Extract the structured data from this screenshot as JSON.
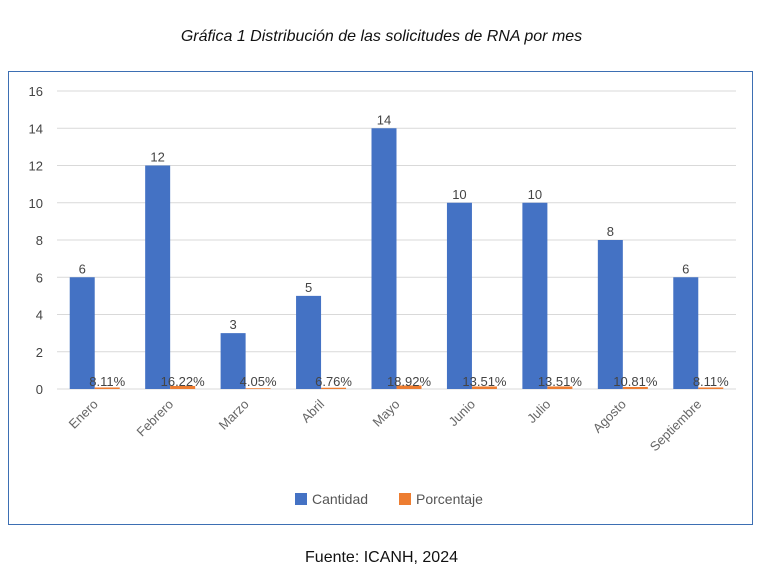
{
  "title": "Gráfica 1 Distribución de las solicitudes de RNA por mes",
  "source": "Fuente: ICANH, 2024",
  "colors": {
    "cantidad": "#4472c4",
    "porcentaje": "#ed7d31",
    "grid": "#d9d9d9",
    "border": "#3d6fb3"
  },
  "chart_data": {
    "type": "bar",
    "categories": [
      "Enero",
      "Febrero",
      "Marzo",
      "Abril",
      "Mayo",
      "Junio",
      "Julio",
      "Agosto",
      "Septiembre"
    ],
    "series": [
      {
        "name": "Cantidad",
        "values": [
          6,
          12,
          3,
          5,
          14,
          10,
          10,
          8,
          6
        ],
        "labels": [
          "6",
          "12",
          "3",
          "5",
          "14",
          "10",
          "10",
          "8",
          "6"
        ]
      },
      {
        "name": "Porcentaje",
        "values": [
          0.0811,
          0.1622,
          0.0405,
          0.0676,
          0.1892,
          0.1351,
          0.1351,
          0.1081,
          0.0811
        ],
        "labels": [
          "8.11%",
          "16.22%",
          "4.05%",
          "6.76%",
          "18.92%",
          "13.51%",
          "13.51%",
          "10.81%",
          "8.11%"
        ]
      }
    ],
    "yticks": [
      "0",
      "2",
      "4",
      "6",
      "8",
      "10",
      "12",
      "14",
      "16"
    ],
    "ylim": [
      0,
      16
    ],
    "grid": true,
    "legend": "bottom"
  }
}
